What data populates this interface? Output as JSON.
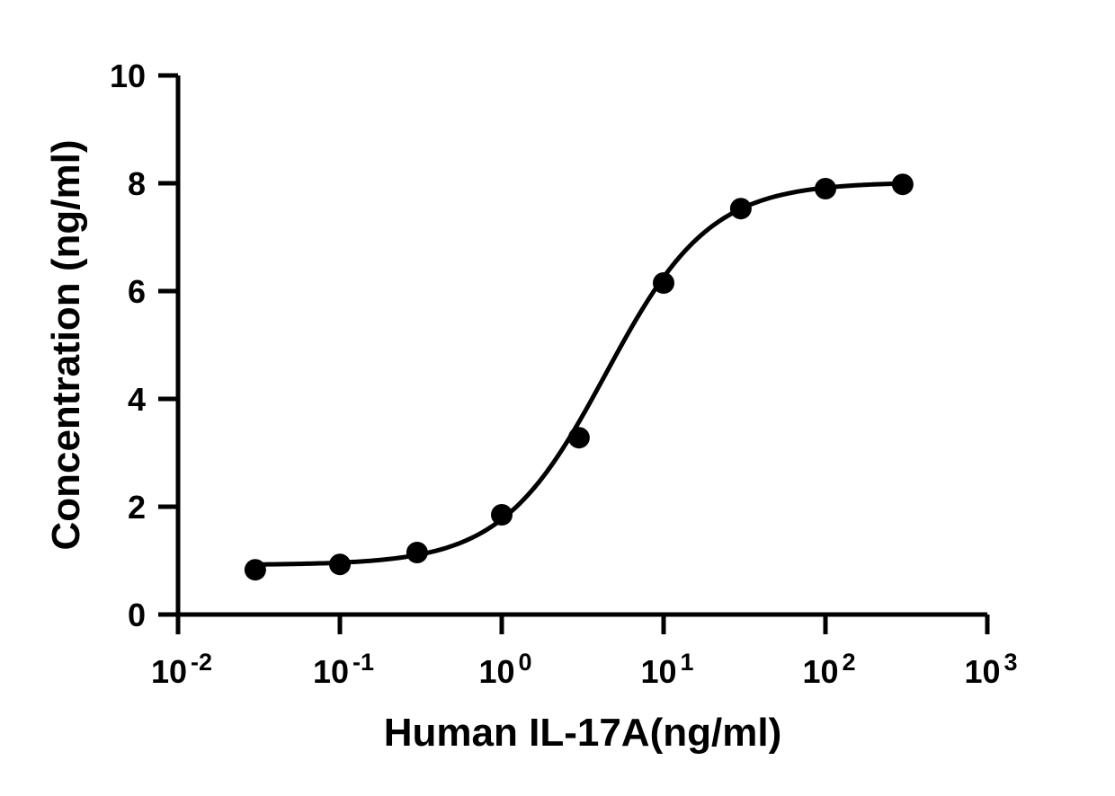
{
  "chart_data": {
    "type": "scatter",
    "x_scale": "log",
    "xlabel": "Human IL-17A(ng/ml)",
    "ylabel": "Concentration (ng/ml)",
    "xlim": [
      0.01,
      1000
    ],
    "ylim": [
      0,
      10
    ],
    "x_ticks": [
      {
        "value": 0.01,
        "base": "10",
        "exp": "-2"
      },
      {
        "value": 0.1,
        "base": "10",
        "exp": "-1"
      },
      {
        "value": 1,
        "base": "10",
        "exp": "0"
      },
      {
        "value": 10,
        "base": "10",
        "exp": "1"
      },
      {
        "value": 100,
        "base": "10",
        "exp": "2"
      },
      {
        "value": 1000,
        "base": "10",
        "exp": "3"
      }
    ],
    "y_ticks": [
      {
        "value": 0,
        "label": "0"
      },
      {
        "value": 2,
        "label": "2"
      },
      {
        "value": 4,
        "label": "4"
      },
      {
        "value": 6,
        "label": "6"
      },
      {
        "value": 8,
        "label": "8"
      },
      {
        "value": 10,
        "label": "10"
      }
    ],
    "series": [
      {
        "x": [
          0.03,
          0.1,
          0.3,
          1,
          3,
          10,
          30,
          100,
          300
        ],
        "y": [
          0.83,
          0.93,
          1.15,
          1.85,
          3.28,
          6.15,
          7.53,
          7.9,
          7.98
        ]
      }
    ],
    "fit_curve": {
      "type": "four-parameter logistic",
      "bottom": 0.92,
      "top": 8.02,
      "ec50": 4.4,
      "hill": 1.35
    },
    "grid": false,
    "legend": "none",
    "colors": {
      "marker": "#000000",
      "line": "#000000",
      "axis": "#000000"
    }
  }
}
